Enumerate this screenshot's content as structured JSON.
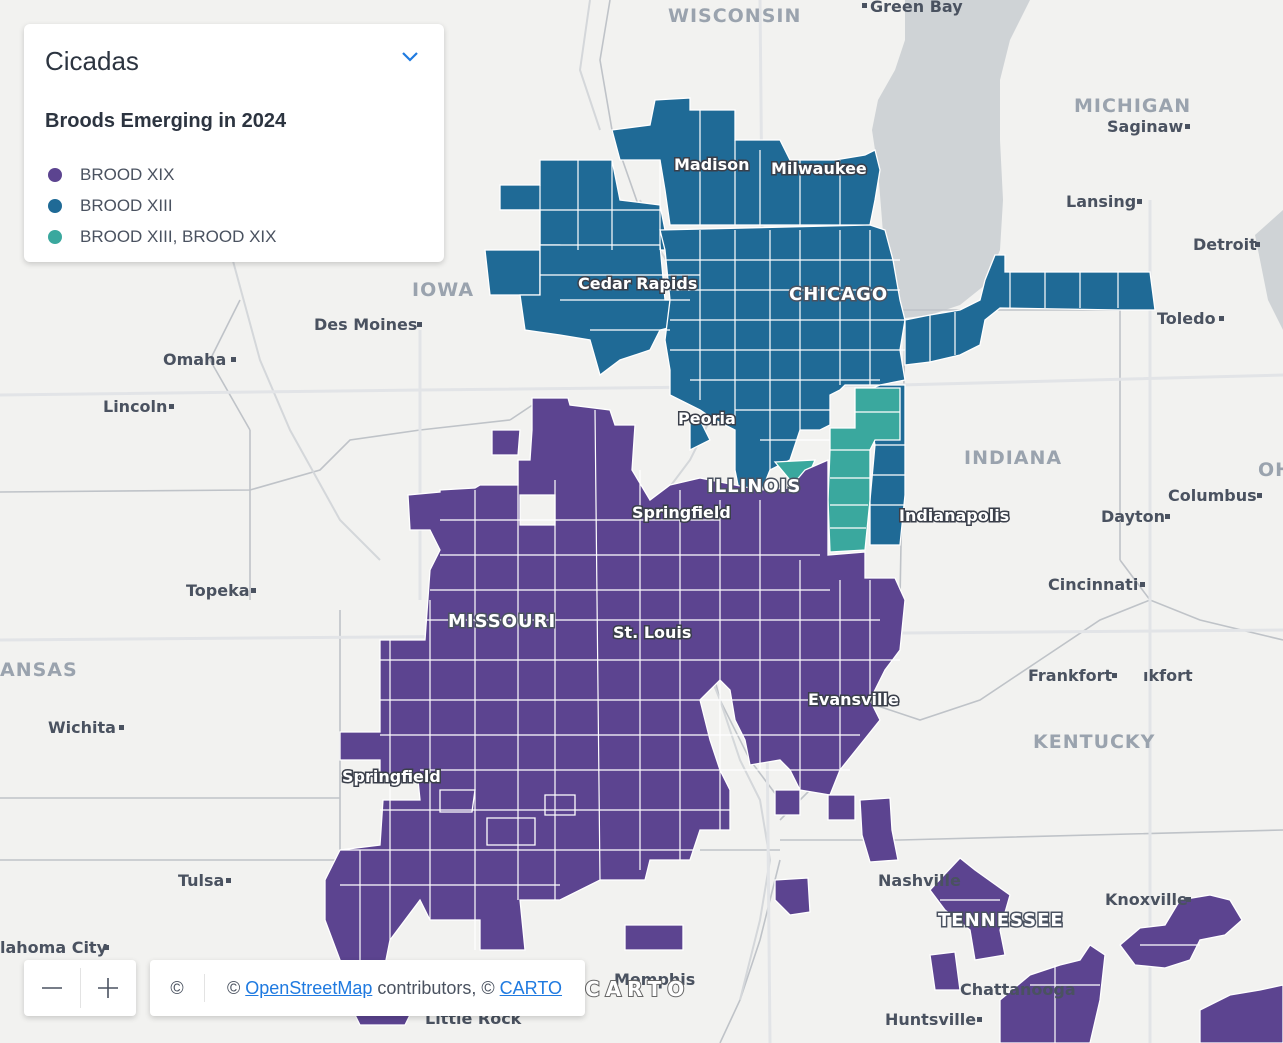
{
  "legend": {
    "title": "Cicadas",
    "subtitle": "Broods Emerging in 2024",
    "items": [
      {
        "label": "BROOD XIX",
        "color": "#5c4490"
      },
      {
        "label": "BROOD XIII",
        "color": "#1f6a96"
      },
      {
        "label": "BROOD XIII, BROOD XIX",
        "color": "#3aa89e"
      }
    ]
  },
  "colors": {
    "brood_xix": "#5c4490",
    "brood_xiii": "#1f6a96",
    "brood_both": "#3aa89e",
    "water": "#cfd3d6",
    "land": "#f2f2f0"
  },
  "states": {
    "wisconsin": "WISCONSIN",
    "michigan": "MICHIGAN",
    "iowa": "IOWA",
    "illinois": "ILLINOIS",
    "indiana": "INDIANA",
    "missouri": "MISSOURI",
    "kentucky": "KENTUCKY",
    "tennessee": "TENNESSEE",
    "kansas": "ANSAS",
    "ohio": "OH"
  },
  "cities": {
    "green_bay": "Green Bay",
    "saginaw": "Saginaw",
    "madison": "Madison",
    "milwaukee": "Milwaukee",
    "lansing": "Lansing",
    "detroit": "Detroit",
    "cedar_rapids": "Cedar Rapids",
    "chicago": "CHICAGO",
    "toledo": "Toledo",
    "des_moines": "Des Moines",
    "omaha": "Omaha",
    "lincoln": "Lincoln",
    "peoria": "Peoria",
    "springfield_il": "Springfield",
    "indianapolis": "Indianapolis",
    "columbus": "Columbus",
    "dayton": "Dayton",
    "topeka": "Topeka",
    "st_louis": "St. Louis",
    "cincinnati": "Cincinnati",
    "frankfort": "Frankfort",
    "frankfort2": "ıkfort",
    "evansville": "Evansville",
    "wichita": "Wichita",
    "springfield_mo": "Springfield",
    "nashville": "Nashville",
    "knoxville": "Knoxville",
    "tulsa": "Tulsa",
    "oklahoma_city": "lahoma City",
    "memphis": "Memphis",
    "little_rock": "Little Rock",
    "chattanooga": "Chattanooga",
    "huntsville": "Huntsville"
  },
  "watermark": "CARTO",
  "zoom": {
    "minus_label": "−",
    "plus_label": "+"
  },
  "attribution": {
    "copy_symbol": "©",
    "prefix": "© ",
    "osm": "OpenStreetMap",
    "middle": " contributors, © ",
    "carto": "CARTO"
  }
}
